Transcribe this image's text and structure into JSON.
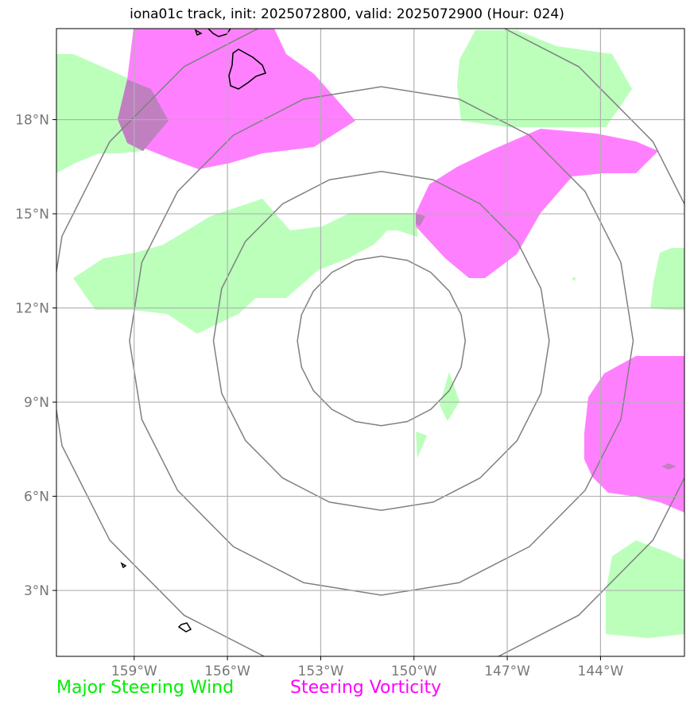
{
  "title": "iona01c track, init: 2025072800, valid: 2025072900 (Hour: 024)",
  "map": {
    "lon_range": [
      -161.5,
      -141.3
    ],
    "lat_range": [
      0.9,
      20.9
    ],
    "lon_ticks": [
      {
        "value": -159,
        "label": "159°W"
      },
      {
        "value": -156,
        "label": "156°W"
      },
      {
        "value": -153,
        "label": "153°W"
      },
      {
        "value": -150,
        "label": "150°W"
      },
      {
        "value": -147,
        "label": "147°W"
      },
      {
        "value": -144,
        "label": "144°W"
      }
    ],
    "lat_ticks": [
      {
        "value": 3,
        "label": "3°N"
      },
      {
        "value": 6,
        "label": "6°N"
      },
      {
        "value": 9,
        "label": "9°N"
      },
      {
        "value": 12,
        "label": "12°N"
      },
      {
        "value": 15,
        "label": "15°N"
      },
      {
        "value": 18,
        "label": "18°N"
      }
    ],
    "grid": true,
    "range_rings": {
      "center": {
        "lon": -151.05,
        "lat": 10.95
      },
      "radii_deg": [
        2.7,
        5.4,
        8.1,
        10.8
      ],
      "color": "#808080"
    },
    "colors": {
      "steering_wind": "#bbffbb",
      "steering_vorticity": "#ff80ff",
      "overlap": "#c080c0",
      "ring": "#808080",
      "grid": "#b0b0b0",
      "coastline": "#000000"
    }
  },
  "legend": {
    "wind_label": "Major Steering Wind",
    "wind_color": "#00ee00",
    "vorticity_label": "Steering Vorticity",
    "vorticity_color": "#ff00ff"
  }
}
